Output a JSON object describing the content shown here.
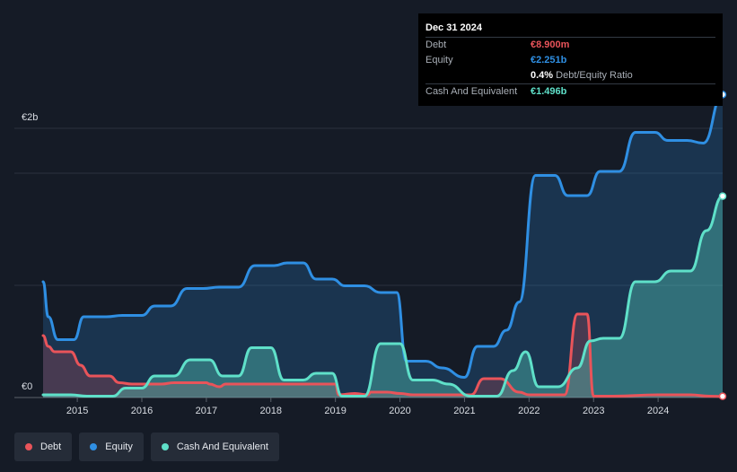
{
  "chart_data": {
    "type": "area",
    "x_ticks": [
      "2015",
      "2016",
      "2017",
      "2018",
      "2019",
      "2020",
      "2021",
      "2022",
      "2023",
      "2024"
    ],
    "y_ticks": [
      {
        "value": 0,
        "label": "€0"
      },
      {
        "value": 2.0,
        "label": "€2b"
      }
    ],
    "y_gridlines": [
      0,
      0.833,
      1.667,
      2.0
    ],
    "ylim": [
      0,
      2.0
    ],
    "xlim": [
      2014.47,
      2025.0
    ],
    "currency": "€",
    "unit": "billions",
    "series": [
      {
        "name": "Debt",
        "color": "#e9545a",
        "points": [
          [
            2014.47,
            0.46
          ],
          [
            2014.55,
            0.38
          ],
          [
            2014.65,
            0.34
          ],
          [
            2014.9,
            0.34
          ],
          [
            2015.05,
            0.24
          ],
          [
            2015.2,
            0.16
          ],
          [
            2015.5,
            0.16
          ],
          [
            2015.65,
            0.11
          ],
          [
            2015.85,
            0.1
          ],
          [
            2016.3,
            0.1
          ],
          [
            2016.5,
            0.11
          ],
          [
            2017.0,
            0.11
          ],
          [
            2017.05,
            0.1
          ],
          [
            2017.2,
            0.08
          ],
          [
            2017.3,
            0.1
          ],
          [
            2017.7,
            0.1
          ],
          [
            2017.85,
            0.1
          ],
          [
            2018.0,
            0.1
          ],
          [
            2018.3,
            0.1
          ],
          [
            2018.5,
            0.1
          ],
          [
            2018.7,
            0.1
          ],
          [
            2018.9,
            0.1
          ],
          [
            2019.0,
            0.1
          ],
          [
            2019.05,
            0.02
          ],
          [
            2019.3,
            0.03
          ],
          [
            2019.5,
            0.02
          ],
          [
            2019.55,
            0.04
          ],
          [
            2019.8,
            0.04
          ],
          [
            2020.0,
            0.03
          ],
          [
            2020.2,
            0.02
          ],
          [
            2021.1,
            0.02
          ],
          [
            2021.3,
            0.14
          ],
          [
            2021.55,
            0.14
          ],
          [
            2021.85,
            0.04
          ],
          [
            2022.0,
            0.02
          ],
          [
            2022.35,
            0.02
          ],
          [
            2022.55,
            0.02
          ],
          [
            2022.75,
            0.62
          ],
          [
            2022.9,
            0.62
          ],
          [
            2023.0,
            0.01
          ],
          [
            2023.3,
            0.01
          ],
          [
            2024.0,
            0.02
          ],
          [
            2024.5,
            0.02
          ],
          [
            2024.8,
            0.01
          ],
          [
            2025.0,
            0.0089
          ]
        ]
      },
      {
        "name": "Equity",
        "color": "#2f8fe3",
        "points": [
          [
            2014.47,
            0.86
          ],
          [
            2014.55,
            0.6
          ],
          [
            2014.7,
            0.43
          ],
          [
            2014.95,
            0.43
          ],
          [
            2015.1,
            0.6
          ],
          [
            2015.45,
            0.6
          ],
          [
            2015.7,
            0.61
          ],
          [
            2016.0,
            0.61
          ],
          [
            2016.2,
            0.68
          ],
          [
            2016.45,
            0.68
          ],
          [
            2016.7,
            0.81
          ],
          [
            2016.95,
            0.81
          ],
          [
            2017.2,
            0.82
          ],
          [
            2017.5,
            0.82
          ],
          [
            2017.75,
            0.98
          ],
          [
            2018.05,
            0.98
          ],
          [
            2018.25,
            1.0
          ],
          [
            2018.5,
            1.0
          ],
          [
            2018.7,
            0.88
          ],
          [
            2018.95,
            0.88
          ],
          [
            2019.15,
            0.83
          ],
          [
            2019.45,
            0.83
          ],
          [
            2019.7,
            0.78
          ],
          [
            2019.95,
            0.78
          ],
          [
            2020.1,
            0.27
          ],
          [
            2020.4,
            0.27
          ],
          [
            2020.65,
            0.22
          ],
          [
            2021.0,
            0.15
          ],
          [
            2021.2,
            0.38
          ],
          [
            2021.45,
            0.38
          ],
          [
            2021.65,
            0.5
          ],
          [
            2021.85,
            0.71
          ],
          [
            2022.1,
            1.65
          ],
          [
            2022.4,
            1.65
          ],
          [
            2022.6,
            1.5
          ],
          [
            2022.9,
            1.5
          ],
          [
            2023.1,
            1.68
          ],
          [
            2023.4,
            1.68
          ],
          [
            2023.65,
            1.97
          ],
          [
            2023.95,
            1.97
          ],
          [
            2024.15,
            1.91
          ],
          [
            2024.45,
            1.91
          ],
          [
            2024.7,
            1.89
          ],
          [
            2025.0,
            2.251
          ]
        ]
      },
      {
        "name": "Cash And Equivalent",
        "color": "#5fe0c9",
        "points": [
          [
            2014.47,
            0.02
          ],
          [
            2014.9,
            0.02
          ],
          [
            2015.15,
            0.01
          ],
          [
            2015.55,
            0.01
          ],
          [
            2015.75,
            0.07
          ],
          [
            2016.0,
            0.07
          ],
          [
            2016.2,
            0.16
          ],
          [
            2016.5,
            0.16
          ],
          [
            2016.75,
            0.28
          ],
          [
            2017.05,
            0.28
          ],
          [
            2017.25,
            0.16
          ],
          [
            2017.5,
            0.16
          ],
          [
            2017.7,
            0.37
          ],
          [
            2018.0,
            0.37
          ],
          [
            2018.2,
            0.13
          ],
          [
            2018.5,
            0.13
          ],
          [
            2018.7,
            0.18
          ],
          [
            2018.95,
            0.18
          ],
          [
            2019.1,
            0.01
          ],
          [
            2019.45,
            0.01
          ],
          [
            2019.7,
            0.4
          ],
          [
            2020.0,
            0.4
          ],
          [
            2020.2,
            0.13
          ],
          [
            2020.5,
            0.13
          ],
          [
            2020.75,
            0.1
          ],
          [
            2021.1,
            0.01
          ],
          [
            2021.5,
            0.01
          ],
          [
            2021.75,
            0.2
          ],
          [
            2021.95,
            0.34
          ],
          [
            2022.15,
            0.08
          ],
          [
            2022.45,
            0.08
          ],
          [
            2022.75,
            0.22
          ],
          [
            2022.95,
            0.42
          ],
          [
            2023.15,
            0.44
          ],
          [
            2023.4,
            0.44
          ],
          [
            2023.65,
            0.86
          ],
          [
            2023.95,
            0.86
          ],
          [
            2024.2,
            0.94
          ],
          [
            2024.5,
            0.94
          ],
          [
            2024.75,
            1.24
          ],
          [
            2025.0,
            1.496
          ]
        ]
      }
    ],
    "legend_position": "bottom-left"
  },
  "tooltip": {
    "date": "Dec 31 2024",
    "rows": [
      {
        "key": "Debt",
        "value": "€8.900m",
        "color": "#e9545a"
      },
      {
        "key": "Equity",
        "value": "€2.251b",
        "color": "#2f8fe3"
      },
      {
        "key": "",
        "value": "0.4%",
        "suffix": "Debt/Equity Ratio",
        "color": "#ffffff"
      },
      {
        "key": "Cash And Equivalent",
        "value": "€1.496b",
        "color": "#5fe0c9"
      }
    ]
  },
  "legend": {
    "items": [
      {
        "label": "Debt",
        "color": "#e9545a"
      },
      {
        "label": "Equity",
        "color": "#2f8fe3"
      },
      {
        "label": "Cash And Equivalent",
        "color": "#5fe0c9"
      }
    ]
  }
}
